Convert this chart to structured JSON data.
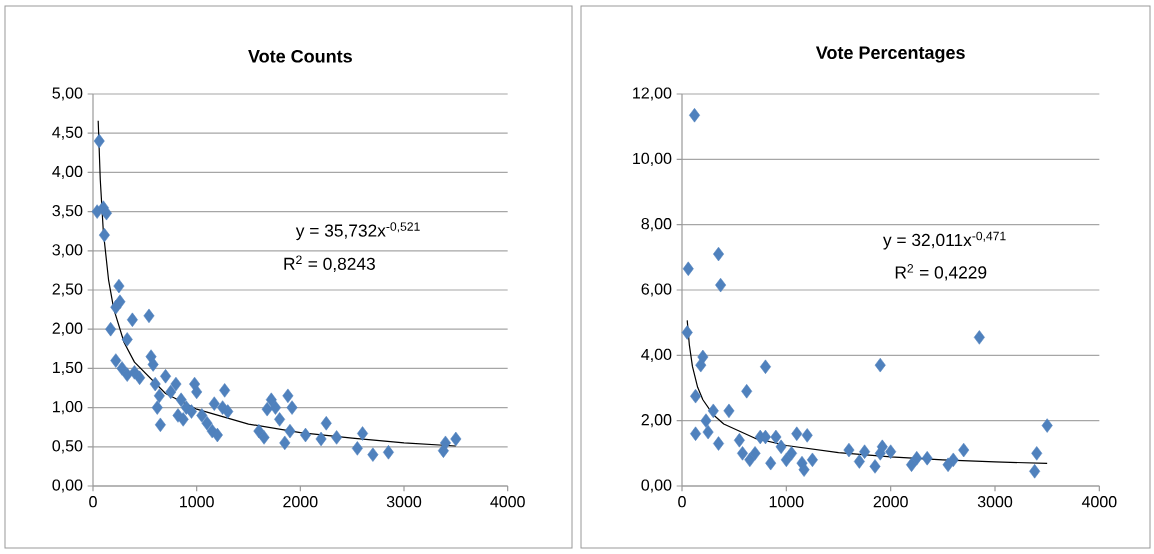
{
  "chart_data": [
    {
      "type": "scatter",
      "title": "Vote Counts",
      "xlim": [
        0,
        4000
      ],
      "ylim": [
        0,
        5
      ],
      "xticks": [
        0,
        1000,
        2000,
        3000,
        4000
      ],
      "yticks": [
        {
          "value": 0,
          "label": "0,00"
        },
        {
          "value": 0.5,
          "label": "0,50"
        },
        {
          "value": 1,
          "label": "1,00"
        },
        {
          "value": 1.5,
          "label": "1,50"
        },
        {
          "value": 2,
          "label": "2,00"
        },
        {
          "value": 2.5,
          "label": "2,50"
        },
        {
          "value": 3,
          "label": "3,00"
        },
        {
          "value": 3.5,
          "label": "3,50"
        },
        {
          "value": 4,
          "label": "4,00"
        },
        {
          "value": 4.5,
          "label": "4,50"
        },
        {
          "value": 5,
          "label": "5,00"
        }
      ],
      "grid": "y",
      "marker": "diamond",
      "annotations": [
        "y = 35,732x$^{-0,521}$",
        "R$^{2}$ = 0,8243"
      ],
      "series": [
        {
          "type": "scatter",
          "color": "#4f81bd",
          "x": [
            60,
            40,
            100,
            130,
            110,
            250,
            260,
            220,
            170,
            380,
            540,
            330,
            220,
            280,
            330,
            400,
            450,
            560,
            580,
            600,
            640,
            620,
            650,
            700,
            750,
            800,
            850,
            900,
            820,
            870,
            950,
            980,
            1000,
            1050,
            1100,
            1150,
            1170,
            1200,
            1250,
            1270,
            1300,
            1600,
            1650,
            1680,
            1720,
            1760,
            1800,
            1850,
            1880,
            1920,
            1900,
            2050,
            2200,
            2250,
            2350,
            2550,
            2600,
            2700,
            2850,
            3380,
            3400,
            3500
          ],
          "values": [
            4.4,
            3.5,
            3.55,
            3.48,
            3.2,
            2.55,
            2.35,
            2.28,
            2.0,
            2.12,
            2.17,
            1.87,
            1.6,
            1.5,
            1.42,
            1.45,
            1.38,
            1.65,
            1.55,
            1.3,
            1.15,
            1.0,
            0.78,
            1.4,
            1.2,
            1.3,
            1.1,
            1.0,
            0.9,
            0.85,
            0.95,
            1.3,
            1.2,
            0.9,
            0.8,
            0.7,
            1.05,
            0.65,
            1.0,
            1.22,
            0.95,
            0.7,
            0.62,
            0.98,
            1.1,
            1.0,
            0.85,
            0.55,
            1.15,
            1.0,
            0.7,
            0.65,
            0.6,
            0.8,
            0.62,
            0.48,
            0.67,
            0.4,
            0.43,
            0.45,
            0.55,
            0.6
          ]
        },
        {
          "type": "line",
          "color": "#000000",
          "marker": "none",
          "x": [
            50,
            70,
            100,
            150,
            200,
            300,
            400,
            700,
            1000,
            1500,
            2000,
            2500,
            3000,
            3500
          ],
          "values": [
            4.66,
            3.91,
            3.24,
            2.63,
            2.26,
            1.83,
            1.58,
            1.18,
            0.98,
            0.79,
            0.68,
            0.61,
            0.55,
            0.51
          ]
        }
      ]
    },
    {
      "type": "scatter",
      "title": "Vote Percentages",
      "xlim": [
        0,
        4000
      ],
      "ylim": [
        0,
        12
      ],
      "xticks": [
        0,
        1000,
        2000,
        3000,
        4000
      ],
      "yticks": [
        {
          "value": 0,
          "label": "0,00"
        },
        {
          "value": 2,
          "label": "2,00"
        },
        {
          "value": 4,
          "label": "4,00"
        },
        {
          "value": 6,
          "label": "6,00"
        },
        {
          "value": 8,
          "label": "8,00"
        },
        {
          "value": 10,
          "label": "10,00"
        },
        {
          "value": 12,
          "label": "12,00"
        }
      ],
      "grid": "y",
      "marker": "diamond",
      "annotations": [
        "y = 32,011x$^{-0,471}$",
        "R$^{2}$ = 0,4229"
      ],
      "series": [
        {
          "type": "scatter",
          "color": "#4f81bd",
          "x": [
            120,
            60,
            350,
            370,
            50,
            200,
            180,
            130,
            620,
            800,
            1900,
            2850,
            3500,
            3400,
            3380,
            130,
            250,
            230,
            300,
            350,
            450,
            550,
            580,
            650,
            700,
            750,
            800,
            850,
            900,
            950,
            1000,
            1050,
            1100,
            1150,
            1170,
            1200,
            1250,
            1600,
            1700,
            1750,
            1850,
            1900,
            1920,
            2000,
            2200,
            2250,
            2350,
            2550,
            2600,
            2700
          ],
          "values": [
            11.35,
            6.65,
            7.1,
            6.15,
            4.7,
            3.95,
            3.7,
            2.75,
            2.9,
            3.65,
            3.7,
            4.55,
            1.85,
            1.0,
            0.45,
            1.6,
            1.65,
            2.0,
            2.3,
            1.3,
            2.3,
            1.4,
            1.0,
            0.8,
            1.0,
            1.5,
            1.5,
            0.7,
            1.5,
            1.2,
            0.8,
            1.0,
            1.6,
            0.7,
            0.5,
            1.55,
            0.8,
            1.1,
            0.75,
            1.05,
            0.6,
            1.0,
            1.2,
            1.05,
            0.65,
            0.85,
            0.85,
            0.65,
            0.8,
            1.1
          ]
        },
        {
          "type": "line",
          "color": "#000000",
          "marker": "none",
          "x": [
            50,
            70,
            100,
            150,
            200,
            300,
            400,
            700,
            1000,
            1500,
            2000,
            2500,
            3000,
            3500
          ],
          "values": [
            5.07,
            4.33,
            3.66,
            3.02,
            2.64,
            2.18,
            1.9,
            1.46,
            1.24,
            1.02,
            0.89,
            0.8,
            0.74,
            0.69
          ]
        }
      ]
    }
  ]
}
